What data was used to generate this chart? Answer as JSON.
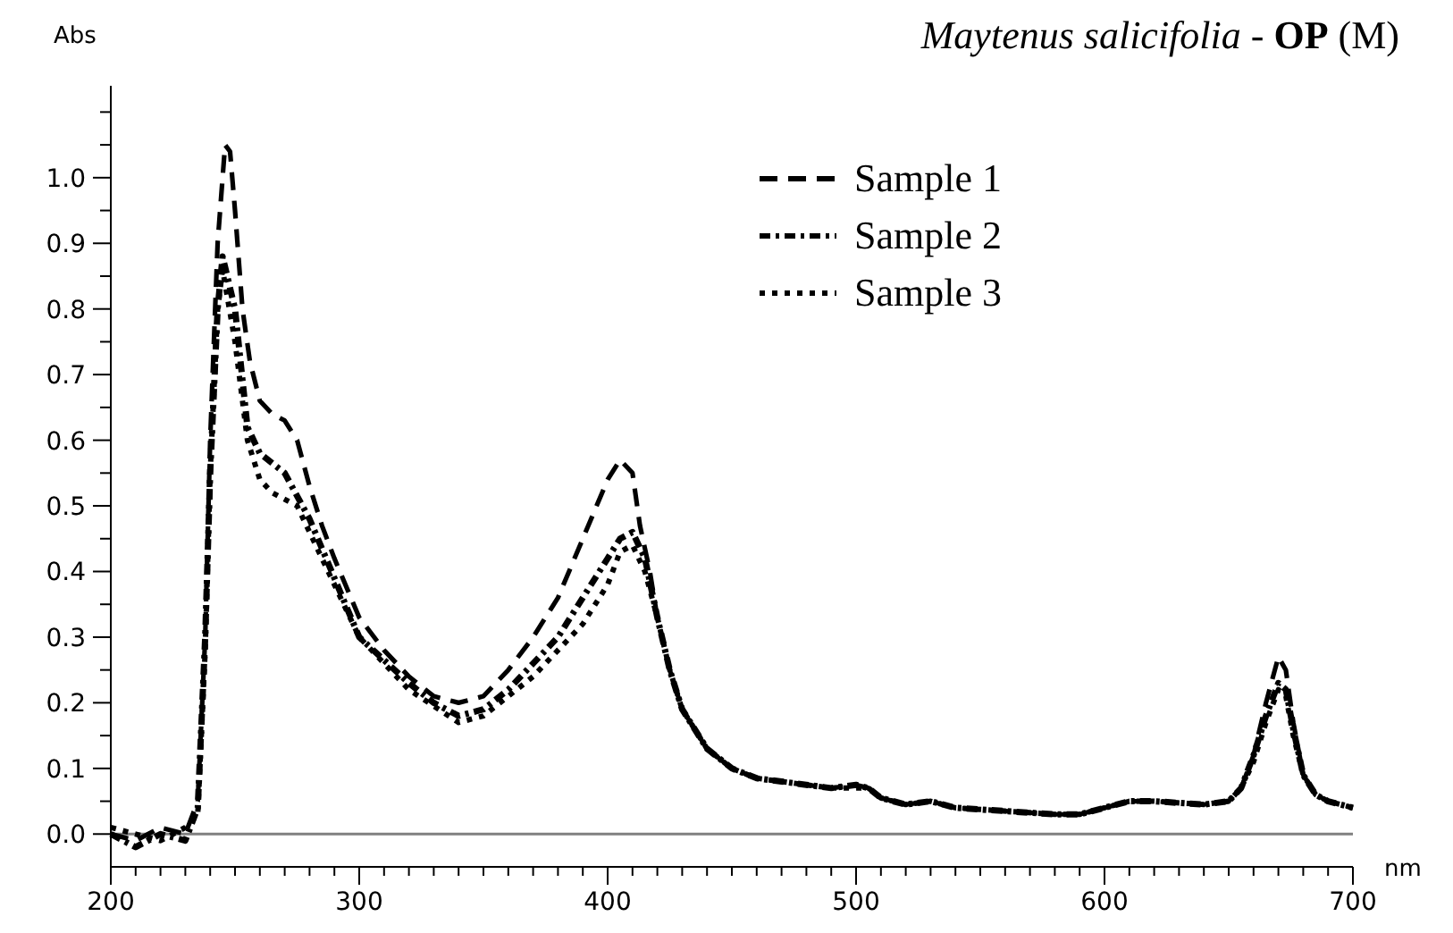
{
  "chart_data": {
    "type": "line",
    "title": "Maytenus salicifolia - OP (M)",
    "xlabel": "nm",
    "ylabel": "Abs",
    "xlim": [
      200,
      700
    ],
    "ylim": [
      -0.05,
      1.14
    ],
    "xticks": [
      200,
      {
        "value": 210,
        "label": null
      },
      {
        "value": 220,
        "label": null
      },
      {
        "value": 230,
        "label": null
      },
      {
        "value": 240,
        "label": null
      },
      {
        "value": 250,
        "label": null
      },
      {
        "value": 260,
        "label": null
      },
      {
        "value": 270,
        "label": null
      },
      {
        "value": 280,
        "label": null
      },
      {
        "value": 290,
        "label": null
      },
      300,
      {
        "value": 310,
        "label": null
      },
      {
        "value": 320,
        "label": null
      },
      {
        "value": 330,
        "label": null
      },
      {
        "value": 340,
        "label": null
      },
      {
        "value": 350,
        "label": null
      },
      {
        "value": 360,
        "label": null
      },
      {
        "value": 370,
        "label": null
      },
      {
        "value": 380,
        "label": null
      },
      {
        "value": 390,
        "label": null
      },
      400,
      {
        "value": 410,
        "label": null
      },
      {
        "value": 420,
        "label": null
      },
      {
        "value": 430,
        "label": null
      },
      {
        "value": 440,
        "label": null
      },
      {
        "value": 450,
        "label": null
      },
      {
        "value": 460,
        "label": null
      },
      {
        "value": 470,
        "label": null
      },
      {
        "value": 480,
        "label": null
      },
      {
        "value": 490,
        "label": null
      },
      500,
      {
        "value": 510,
        "label": null
      },
      {
        "value": 520,
        "label": null
      },
      {
        "value": 530,
        "label": null
      },
      {
        "value": 540,
        "label": null
      },
      {
        "value": 550,
        "label": null
      },
      {
        "value": 560,
        "label": null
      },
      {
        "value": 570,
        "label": null
      },
      {
        "value": 580,
        "label": null
      },
      {
        "value": 590,
        "label": null
      },
      600,
      {
        "value": 610,
        "label": null
      },
      {
        "value": 620,
        "label": null
      },
      {
        "value": 630,
        "label": null
      },
      {
        "value": 640,
        "label": null
      },
      {
        "value": 650,
        "label": null
      },
      {
        "value": 660,
        "label": null
      },
      {
        "value": 670,
        "label": null
      },
      {
        "value": 680,
        "label": null
      },
      {
        "value": 690,
        "label": null
      },
      700
    ],
    "yticks": [
      {
        "value": 0,
        "label": "0.0"
      },
      {
        "value": 0.05,
        "label": null
      },
      {
        "value": 0.1,
        "label": "0.1"
      },
      {
        "value": 0.15,
        "label": null
      },
      {
        "value": 0.2,
        "label": "0.2"
      },
      {
        "value": 0.25,
        "label": null
      },
      {
        "value": 0.3,
        "label": "0.3"
      },
      {
        "value": 0.35,
        "label": null
      },
      {
        "value": 0.4,
        "label": "0.4"
      },
      {
        "value": 0.45,
        "label": null
      },
      {
        "value": 0.5,
        "label": "0.5"
      },
      {
        "value": 0.55,
        "label": null
      },
      {
        "value": 0.6,
        "label": "0.6"
      },
      {
        "value": 0.65,
        "label": null
      },
      {
        "value": 0.7,
        "label": "0.7"
      },
      {
        "value": 0.75,
        "label": null
      },
      {
        "value": 0.8,
        "label": "0.8"
      },
      {
        "value": 0.85,
        "label": null
      },
      {
        "value": 0.9,
        "label": "0.9"
      },
      {
        "value": 0.95,
        "label": null
      },
      {
        "value": 1.0,
        "label": "1.0"
      },
      {
        "value": 1.05,
        "label": null
      },
      {
        "value": 1.1,
        "label": null
      }
    ],
    "ref_lines": [
      {
        "axis": "y",
        "value": 0,
        "color": "#808080",
        "line_style": "solid"
      }
    ],
    "grid": false,
    "legend": "top right",
    "series": [
      {
        "name": "Sample 1",
        "color": "#000000",
        "line_style": "dashed",
        "x": [
          200,
          210,
          220,
          230,
          235,
          238,
          240,
          243,
          246,
          248,
          250,
          253,
          256,
          260,
          265,
          270,
          275,
          280,
          285,
          290,
          300,
          310,
          320,
          330,
          340,
          350,
          360,
          370,
          380,
          390,
          400,
          405,
          410,
          413,
          417,
          420,
          425,
          430,
          440,
          450,
          460,
          470,
          480,
          490,
          500,
          505,
          510,
          520,
          530,
          540,
          560,
          580,
          590,
          600,
          610,
          620,
          640,
          650,
          655,
          660,
          665,
          670,
          673,
          676,
          680,
          685,
          690,
          700
        ],
        "values": [
          0.0,
          -0.01,
          0.01,
          0.0,
          0.05,
          0.3,
          0.6,
          0.9,
          1.05,
          1.04,
          0.95,
          0.8,
          0.72,
          0.66,
          0.64,
          0.63,
          0.6,
          0.53,
          0.47,
          0.42,
          0.33,
          0.28,
          0.24,
          0.21,
          0.2,
          0.21,
          0.25,
          0.3,
          0.36,
          0.45,
          0.54,
          0.57,
          0.55,
          0.47,
          0.4,
          0.33,
          0.25,
          0.19,
          0.13,
          0.1,
          0.085,
          0.08,
          0.075,
          0.07,
          0.075,
          0.07,
          0.055,
          0.045,
          0.05,
          0.04,
          0.035,
          0.03,
          0.03,
          0.04,
          0.05,
          0.05,
          0.045,
          0.05,
          0.07,
          0.12,
          0.2,
          0.27,
          0.25,
          0.17,
          0.09,
          0.06,
          0.05,
          0.04
        ]
      },
      {
        "name": "Sample 2",
        "color": "#000000",
        "line_style": "dotted",
        "x": [
          200,
          210,
          220,
          230,
          235,
          238,
          240,
          243,
          245,
          250,
          255,
          260,
          270,
          280,
          290,
          300,
          320,
          330,
          340,
          350,
          360,
          370,
          380,
          390,
          400,
          405,
          410,
          415,
          420,
          425,
          430,
          440,
          450,
          460,
          470,
          480,
          490,
          500,
          505,
          510,
          520,
          530,
          540,
          560,
          580,
          590,
          600,
          610,
          620,
          640,
          650,
          655,
          660,
          665,
          670,
          673,
          676,
          680,
          685,
          690,
          700
        ],
        "values": [
          0.0,
          -0.02,
          0.0,
          -0.01,
          0.04,
          0.3,
          0.55,
          0.8,
          0.88,
          0.8,
          0.62,
          0.58,
          0.55,
          0.48,
          0.39,
          0.3,
          0.23,
          0.2,
          0.18,
          0.19,
          0.22,
          0.26,
          0.3,
          0.36,
          0.42,
          0.45,
          0.46,
          0.42,
          0.33,
          0.25,
          0.19,
          0.13,
          0.1,
          0.085,
          0.08,
          0.075,
          0.07,
          0.075,
          0.07,
          0.055,
          0.045,
          0.05,
          0.04,
          0.035,
          0.03,
          0.03,
          0.04,
          0.05,
          0.05,
          0.045,
          0.05,
          0.07,
          0.12,
          0.18,
          0.23,
          0.22,
          0.16,
          0.09,
          0.06,
          0.05,
          0.04
        ]
      },
      {
        "name": "Sample 3",
        "color": "#000000",
        "line_style": "dotted",
        "x": [
          200,
          210,
          220,
          230,
          235,
          238,
          240,
          243,
          245,
          250,
          255,
          260,
          265,
          275,
          285,
          300,
          320,
          340,
          350,
          360,
          370,
          380,
          390,
          400,
          405,
          410,
          415,
          420,
          425,
          430,
          440,
          450,
          460,
          470,
          480,
          490,
          500,
          505,
          510,
          520,
          530,
          540,
          560,
          580,
          590,
          600,
          610,
          620,
          640,
          650,
          655,
          660,
          665,
          670,
          673,
          676,
          680,
          685,
          690,
          700
        ],
        "values": [
          0.01,
          0.0,
          -0.01,
          0.01,
          0.03,
          0.28,
          0.55,
          0.8,
          0.86,
          0.75,
          0.6,
          0.54,
          0.52,
          0.5,
          0.42,
          0.3,
          0.22,
          0.17,
          0.18,
          0.21,
          0.24,
          0.28,
          0.32,
          0.38,
          0.43,
          0.44,
          0.4,
          0.33,
          0.25,
          0.19,
          0.13,
          0.1,
          0.085,
          0.08,
          0.075,
          0.07,
          0.07,
          0.07,
          0.055,
          0.045,
          0.05,
          0.04,
          0.035,
          0.03,
          0.03,
          0.04,
          0.05,
          0.05,
          0.045,
          0.05,
          0.07,
          0.11,
          0.17,
          0.22,
          0.21,
          0.15,
          0.09,
          0.06,
          0.05,
          0.04
        ]
      }
    ]
  }
}
